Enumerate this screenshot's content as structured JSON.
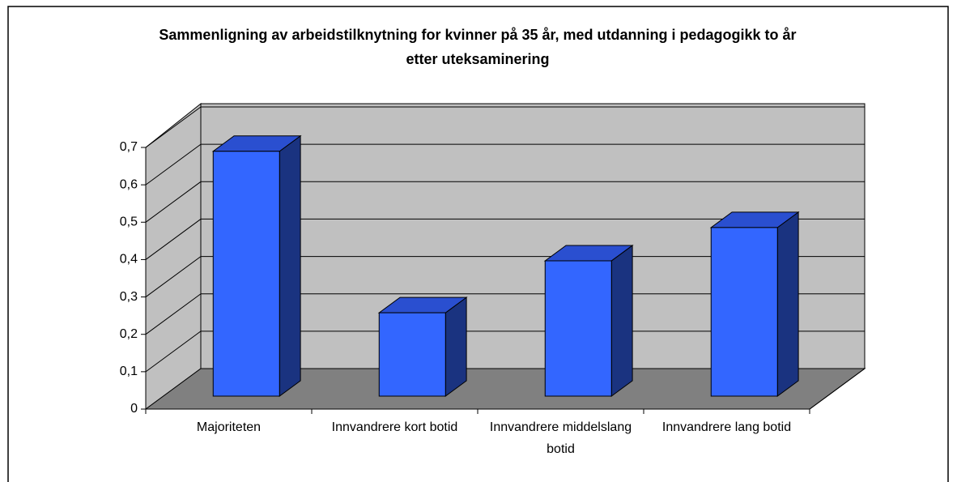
{
  "chart_data": {
    "type": "bar3d",
    "title": "Sammenligning av arbeidstilknytning for kvinner på 35 år, med utdanning i pedagogikk to år etter uteksaminering",
    "categories": [
      "Majoriteten",
      "Innvandrere kort botid",
      "Innvandrere middelslang botid",
      "Innvandrere lang botid"
    ],
    "values": [
      0.655,
      0.223,
      0.362,
      0.451
    ],
    "color": "#3366ff",
    "ylim": [
      0,
      0.7
    ],
    "yticks": [
      0,
      {
        "value": 0.1,
        "label": "0,1"
      },
      {
        "value": 0.2,
        "label": "0,2"
      },
      {
        "value": 0.3,
        "label": "0,3"
      },
      {
        "value": 0.4,
        "label": "0,4"
      },
      {
        "value": 0.5,
        "label": "0,5"
      },
      {
        "value": 0.6,
        "label": "0,6"
      },
      {
        "value": 0.7,
        "label": "0,7"
      }
    ],
    "grid": true
  }
}
